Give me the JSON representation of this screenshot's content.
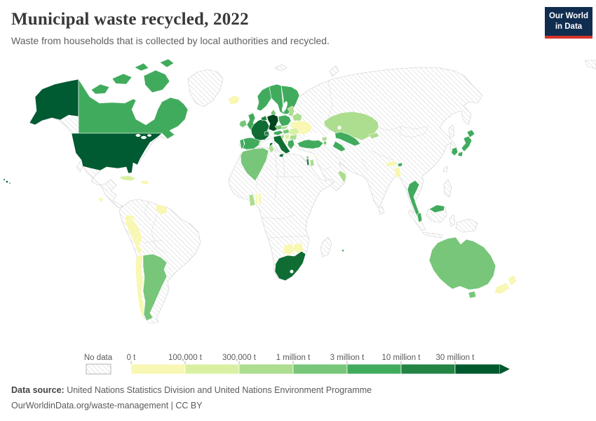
{
  "header": {
    "title": "Municipal waste recycled, 2022",
    "subtitle": "Waste from households that is collected by local authorities and recycled.",
    "logo": {
      "line1": "Our World",
      "line2": "in Data",
      "bg": "#102d50",
      "accent": "#d8352a"
    }
  },
  "legend": {
    "no_data_label": "No data",
    "tick_labels": [
      "0 t",
      "100,000 t",
      "300,000 t",
      "1 million t",
      "3 million t",
      "10 million t",
      "30 million t"
    ],
    "colors": [
      "#f8f7b3",
      "#d9f0a3",
      "#addd8e",
      "#78c679",
      "#41ab5d",
      "#238443",
      "#00592e"
    ],
    "hatch_line_color": "#d9d9d9",
    "swatch_border_color": "#b3b3b3"
  },
  "footer": {
    "source_label": "Data source:",
    "source_text": " United Nations Statistics Division and United Nations Environment Programme",
    "citation": "OurWorldinData.org/waste-management | CC BY"
  },
  "chart_data": {
    "type": "choropleth",
    "title": "Municipal waste recycled, 2022",
    "unit": "tonnes",
    "year": 2022,
    "legend_position": "bottom",
    "categories": [
      "0–100,000 t",
      "100,000–300,000 t",
      "300,000–1 million t",
      "1–3 million t",
      "3–10 million t",
      "10–30 million t",
      "30+ million t"
    ],
    "no_data_regions": [
      "Russia",
      "China",
      "India",
      "Brazil",
      "Mexico",
      "Greenland",
      "Saudi Arabia",
      "Iran",
      "Iraq",
      "Egypt",
      "Libya",
      "Morocco",
      "Mongolia",
      "Indonesia",
      "Philippines",
      "Vietnam",
      "Colombia",
      "Venezuela",
      "Bolivia",
      "Madagascar",
      "Sri Lanka",
      "Papua New Guinea",
      "most of Africa"
    ],
    "entities": [
      {
        "id": "united-states",
        "name": "United States",
        "category": "30+ million t",
        "fill": "#005a32"
      },
      {
        "id": "canada",
        "name": "Canada",
        "category": "3–10 million t",
        "fill": "#41ab5d"
      },
      {
        "id": "cuba",
        "name": "Cuba",
        "category": "100,000–300,000 t",
        "fill": "#d9f0a3"
      },
      {
        "id": "dominican-republic",
        "name": "Dominican Republic",
        "category": "0–100,000 t",
        "fill": "#f8f7b3"
      },
      {
        "id": "costa-rica",
        "name": "Costa Rica",
        "category": "0–100,000 t",
        "fill": "#f8f7b3"
      },
      {
        "id": "ecuador",
        "name": "Ecuador",
        "category": "0–100,000 t",
        "fill": "#f8f7b3"
      },
      {
        "id": "peru",
        "name": "Peru",
        "category": "0–100,000 t",
        "fill": "#f8f7b3"
      },
      {
        "id": "chile",
        "name": "Chile",
        "category": "0–100,000 t",
        "fill": "#f8f7b3"
      },
      {
        "id": "argentina",
        "name": "Argentina",
        "category": "1–3 million t",
        "fill": "#78c679"
      },
      {
        "id": "guyana",
        "name": "Guyana & Suriname",
        "category": "0–100,000 t",
        "fill": "#f8f7b3"
      },
      {
        "id": "iceland",
        "name": "Iceland",
        "category": "0–100,000 t",
        "fill": "#f8f7b3"
      },
      {
        "id": "united-kingdom",
        "name": "United Kingdom",
        "category": "3–10 million t",
        "fill": "#41ab5d"
      },
      {
        "id": "ireland",
        "name": "Ireland",
        "category": "1–3 million t",
        "fill": "#78c679"
      },
      {
        "id": "norway",
        "name": "Norway",
        "category": "3–10 million t",
        "fill": "#41ab5d"
      },
      {
        "id": "sweden",
        "name": "Sweden",
        "category": "3–10 million t",
        "fill": "#41ab5d"
      },
      {
        "id": "finland",
        "name": "Finland",
        "category": "3–10 million t",
        "fill": "#41ab5d"
      },
      {
        "id": "denmark",
        "name": "Denmark",
        "category": "1–3 million t",
        "fill": "#78c679"
      },
      {
        "id": "portugal",
        "name": "Portugal",
        "category": "3–10 million t",
        "fill": "#41ab5d"
      },
      {
        "id": "spain",
        "name": "Spain",
        "category": "3–10 million t",
        "fill": "#41ab5d"
      },
      {
        "id": "france",
        "name": "France",
        "category": "10–30 million t",
        "fill": "#0f6d34"
      },
      {
        "id": "netherlands-belgium",
        "name": "Netherlands & Belgium",
        "category": "10–30 million t",
        "fill": "#238443"
      },
      {
        "id": "germany",
        "name": "Germany",
        "category": "30+ million t",
        "fill": "#00441b"
      },
      {
        "id": "switzerland",
        "name": "Switzerland",
        "category": "10–30 million t",
        "fill": "#238443"
      },
      {
        "id": "austria",
        "name": "Austria",
        "category": "3–10 million t",
        "fill": "#41ab5d"
      },
      {
        "id": "czechia",
        "name": "Czechia",
        "category": "1–3 million t",
        "fill": "#78c679"
      },
      {
        "id": "poland",
        "name": "Poland",
        "category": "3–10 million t",
        "fill": "#41ab5d"
      },
      {
        "id": "baltic-states",
        "name": "Baltic states",
        "category": "300,000–1 million t",
        "fill": "#addd8e"
      },
      {
        "id": "belarus",
        "name": "Belarus",
        "category": "300,000–1 million t",
        "fill": "#addd8e"
      },
      {
        "id": "ukraine",
        "name": "Ukraine",
        "category": "0–100,000 t",
        "fill": "#f8f7b3"
      },
      {
        "id": "slovakia",
        "name": "Slovakia",
        "category": "300,000–1 million t",
        "fill": "#addd8e"
      },
      {
        "id": "hungary",
        "name": "Hungary",
        "category": "1–3 million t",
        "fill": "#78c679"
      },
      {
        "id": "romania",
        "name": "Romania",
        "category": "100,000–300,000 t",
        "fill": "#d9f0a3"
      },
      {
        "id": "croatia",
        "name": "Croatia",
        "category": "300,000–1 million t",
        "fill": "#addd8e"
      },
      {
        "id": "serbia",
        "name": "Serbia",
        "category": "100,000–300,000 t",
        "fill": "#d9f0a3"
      },
      {
        "id": "bulgaria",
        "name": "Bulgaria",
        "category": "300,000–1 million t",
        "fill": "#addd8e"
      },
      {
        "id": "albania",
        "name": "Albania",
        "category": "100,000–300,000 t",
        "fill": "#d9f0a3"
      },
      {
        "id": "greece",
        "name": "Greece",
        "category": "3–10 million t",
        "fill": "#41ab5d"
      },
      {
        "id": "italy",
        "name": "Italy",
        "category": "10–30 million t",
        "fill": "#0f6d34"
      },
      {
        "id": "turkey",
        "name": "Turkey",
        "category": "3–10 million t",
        "fill": "#41ab5d"
      },
      {
        "id": "cyprus",
        "name": "Cyprus",
        "category": "0–100,000 t",
        "fill": "#f8f7b3"
      },
      {
        "id": "georgia",
        "name": "Georgia",
        "category": "300,000–1 million t",
        "fill": "#addd8e"
      },
      {
        "id": "armenia",
        "name": "Armenia",
        "category": "1–3 million t",
        "fill": "#78c679"
      },
      {
        "id": "azerbaijan",
        "name": "Azerbaijan",
        "category": "3–10 million t",
        "fill": "#41ab5d"
      },
      {
        "id": "lebanon",
        "name": "Lebanon",
        "category": "1–3 million t",
        "fill": "#78c679"
      },
      {
        "id": "israel",
        "name": "Israel",
        "category": "10–30 million t",
        "fill": "#238443"
      },
      {
        "id": "jordan",
        "name": "Jordan",
        "category": "300,000–1 million t",
        "fill": "#addd8e"
      },
      {
        "id": "oman-uae",
        "name": "Oman & UAE",
        "category": "300,000–1 million t",
        "fill": "#addd8e"
      },
      {
        "id": "kazakhstan",
        "name": "Kazakhstan",
        "category": "300,000–1 million t",
        "fill": "#addd8e"
      },
      {
        "id": "uzbekistan",
        "name": "Uzbekistan",
        "category": "3–10 million t",
        "fill": "#41ab5d"
      },
      {
        "id": "turkmenistan",
        "name": "Turkmenistan",
        "category": "3–10 million t",
        "fill": "#41ab5d"
      },
      {
        "id": "kyrgyzstan",
        "name": "Kyrgyzstan",
        "category": "300,000–1 million t",
        "fill": "#addd8e"
      },
      {
        "id": "nepal",
        "name": "Nepal",
        "category": "0–100,000 t",
        "fill": "#f8f7b3"
      },
      {
        "id": "bangladesh",
        "name": "Bangladesh",
        "category": "0–100,000 t",
        "fill": "#f8f7b3"
      },
      {
        "id": "bhutan",
        "name": "Bhutan",
        "category": "3–10 million t",
        "fill": "#41ab5d"
      },
      {
        "id": "thailand",
        "name": "Thailand",
        "category": "3–10 million t",
        "fill": "#41ab5d"
      },
      {
        "id": "malaysia",
        "name": "Malaysia",
        "category": "3–10 million t",
        "fill": "#41ab5d"
      },
      {
        "id": "south-korea",
        "name": "South Korea",
        "category": "3–10 million t",
        "fill": "#41ab5d"
      },
      {
        "id": "japan",
        "name": "Japan",
        "category": "3–10 million t",
        "fill": "#41ab5d"
      },
      {
        "id": "algeria",
        "name": "Algeria",
        "category": "1–3 million t",
        "fill": "#78c679"
      },
      {
        "id": "tunisia",
        "name": "Tunisia",
        "category": "300,000–1 million t",
        "fill": "#addd8e"
      },
      {
        "id": "ghana",
        "name": "Ghana",
        "category": "300,000–1 million t",
        "fill": "#addd8e"
      },
      {
        "id": "togo",
        "name": "Togo",
        "category": "0–100,000 t",
        "fill": "#f8f7b3"
      },
      {
        "id": "benin",
        "name": "Benin",
        "category": "0–100,000 t",
        "fill": "#f8f7b3"
      },
      {
        "id": "south-africa",
        "name": "South Africa",
        "category": "10–30 million t",
        "fill": "#0f6d34"
      },
      {
        "id": "botswana",
        "name": "Botswana",
        "category": "0–100,000 t",
        "fill": "#f8f7b3"
      },
      {
        "id": "zimbabwe",
        "name": "Zimbabwe",
        "category": "0–100,000 t",
        "fill": "#f8f7b3"
      },
      {
        "id": "mauritius",
        "name": "Mauritius",
        "category": "3–10 million t",
        "fill": "#41ab5d"
      },
      {
        "id": "australia",
        "name": "Australia",
        "category": "1–3 million t",
        "fill": "#78c679"
      },
      {
        "id": "new-zealand",
        "name": "New Zealand",
        "category": "0–100,000 t",
        "fill": "#f8f7b3"
      }
    ]
  }
}
